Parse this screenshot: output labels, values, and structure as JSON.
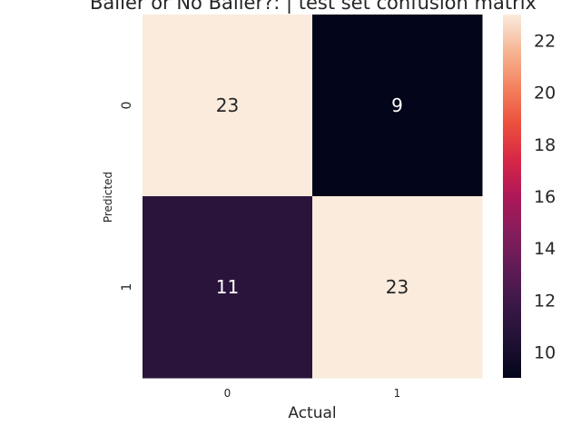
{
  "chart_data": {
    "type": "heatmap",
    "title": "Baller or No Baller?: | test set confusion matrix",
    "xlabel": "Actual",
    "ylabel": "Predicted",
    "x_categories": [
      "0",
      "1"
    ],
    "y_categories": [
      "0",
      "1"
    ],
    "matrix": [
      [
        23,
        9
      ],
      [
        11,
        23
      ]
    ],
    "colorbar": {
      "range": [
        9,
        23
      ],
      "ticks": [
        10,
        12,
        14,
        16,
        18,
        20,
        22
      ],
      "colormap": "rocket"
    }
  }
}
